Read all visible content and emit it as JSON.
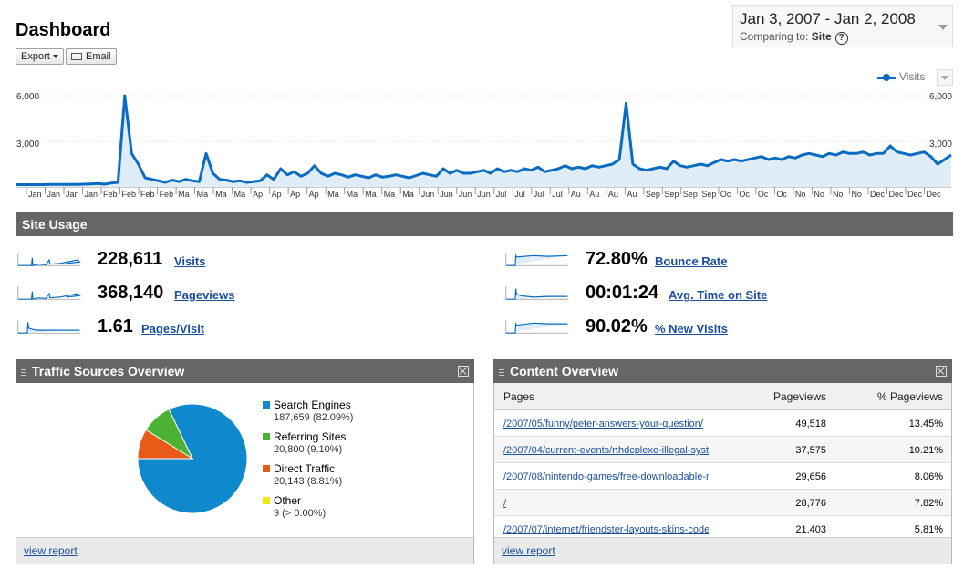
{
  "header": {
    "title": "Dashboard",
    "export_label": "Export",
    "email_label": "Email",
    "date_range": "Jan 3, 2007 - Jan 2, 2008",
    "comparing_label": "Comparing to:",
    "comparing_value": "Site",
    "help_glyph": "?"
  },
  "chart_data": {
    "type": "area",
    "series": [
      {
        "name": "Visits",
        "color": "#0a6cc0"
      }
    ],
    "y_ticks_left": [
      "6,000",
      "3,000"
    ],
    "y_ticks_right": [
      "6,000",
      "3,000"
    ],
    "ylim": [
      0,
      6000
    ],
    "x_ticks": [
      "Jan",
      "Jan",
      "Jan",
      "Jan",
      "Feb",
      "Feb",
      "Feb",
      "Feb",
      "Ma",
      "Ma",
      "Ma",
      "Ma",
      "Ap",
      "Ap",
      "Ap",
      "Ap",
      "Ma",
      "Ma",
      "Ma",
      "Ma",
      "Ma",
      "Jun",
      "Jun",
      "Jun",
      "Jun",
      "Jul",
      "Jul",
      "Jul",
      "Jul",
      "Au",
      "Au",
      "Au",
      "Au",
      "Sep",
      "Sep",
      "Sep",
      "Sep",
      "Oc",
      "Oc",
      "Oc",
      "Oc",
      "No",
      "No",
      "No",
      "No",
      "Dec",
      "Dec",
      "Dec",
      "Dec"
    ],
    "y_points": [
      150,
      150,
      150,
      150,
      150,
      160,
      170,
      160,
      160,
      170,
      180,
      200,
      220,
      180,
      260,
      300,
      6000,
      2200,
      1500,
      600,
      500,
      400,
      300,
      450,
      350,
      500,
      400,
      350,
      2200,
      900,
      500,
      450,
      350,
      400,
      300,
      350,
      400,
      800,
      500,
      1200,
      800,
      1000,
      700,
      900,
      1400,
      900,
      700,
      900,
      800,
      650,
      800,
      700,
      600,
      800,
      650,
      700,
      800,
      700,
      600,
      750,
      900,
      800,
      700,
      1200,
      900,
      1100,
      900,
      900,
      1000,
      1100,
      900,
      1200,
      1000,
      1100,
      1000,
      1200,
      1100,
      1300,
      1000,
      1100,
      1200,
      1400,
      1200,
      1300,
      1200,
      1400,
      1300,
      1400,
      1500,
      1800,
      5500,
      1500,
      1200,
      1100,
      1200,
      1300,
      1200,
      1700,
      1400,
      1300,
      1400,
      1500,
      1400,
      1600,
      1800,
      1700,
      1800,
      1700,
      1800,
      1900,
      2000,
      1800,
      1900,
      1800,
      2000,
      1900,
      2100,
      2200,
      2100,
      2000,
      2200,
      2100,
      2300,
      2200,
      2200,
      2300,
      2100,
      2200,
      2200,
      2700,
      2300,
      2200,
      2100,
      2200,
      2300,
      2000,
      1500,
      1800,
      2100
    ]
  },
  "site_usage": {
    "title": "Site Usage",
    "metrics": [
      {
        "value": "228,611",
        "label": "Visits"
      },
      {
        "value": "368,140",
        "label": "Pageviews"
      },
      {
        "value": "1.61",
        "label": "Pages/Visit"
      },
      {
        "value": "72.80%",
        "label": "Bounce Rate"
      },
      {
        "value": "00:01:24",
        "label": "Avg. Time on Site"
      },
      {
        "value": "90.02%",
        "label": "% New Visits"
      }
    ]
  },
  "traffic_sources": {
    "title": "Traffic Sources Overview",
    "footer_link": "view report",
    "sources": [
      {
        "name": "Search Engines",
        "detail": "187,659 (82.09%)",
        "share": 82.09,
        "color": "#1088cc"
      },
      {
        "name": "Referring Sites",
        "detail": "20,800 (9.10%)",
        "share": 9.1,
        "color": "#4bb233"
      },
      {
        "name": "Direct Traffic",
        "detail": "20,143 (8.81%)",
        "share": 8.81,
        "color": "#e85a18"
      },
      {
        "name": "Other",
        "detail": "9 (> 0.00%)",
        "share": 0.0,
        "color": "#f0e614"
      }
    ]
  },
  "content_overview": {
    "title": "Content Overview",
    "footer_link": "view report",
    "columns": [
      "Pages",
      "Pageviews",
      "% Pageviews"
    ],
    "rows": [
      {
        "page": "/2007/05/funny/peter-answers-your-question/",
        "pageviews": "49,518",
        "pct": "13.45%"
      },
      {
        "page": "/2007/04/current-events/rthdcplexe-illegal-syst",
        "pageviews": "37,575",
        "pct": "10.21%"
      },
      {
        "page": "/2007/08/nintendo-games/free-downloadable-n",
        "pageviews": "29,656",
        "pct": "8.06%"
      },
      {
        "page": "/",
        "pageviews": "28,776",
        "pct": "7.82%"
      },
      {
        "page": "/2007/07/internet/friendster-layouts-skins-code",
        "pageviews": "21,403",
        "pct": "5.81%"
      }
    ]
  }
}
